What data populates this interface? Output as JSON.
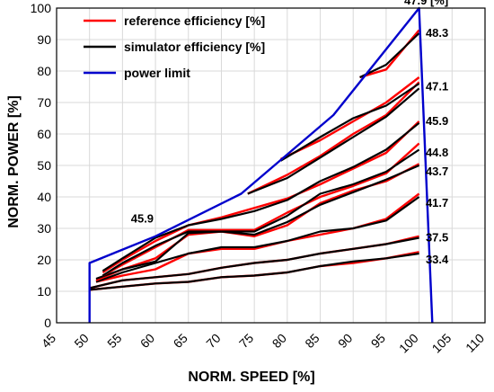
{
  "chart_data": {
    "type": "line",
    "xlabel": "NORM. SPEED [%]",
    "ylabel": "NORM. POWER [%]",
    "xlim": [
      45,
      110
    ],
    "ylim": [
      0,
      100
    ],
    "xticks": [
      45,
      50,
      55,
      60,
      65,
      70,
      75,
      80,
      85,
      90,
      95,
      100,
      105,
      110
    ],
    "yticks": [
      0,
      10,
      20,
      30,
      40,
      50,
      60,
      70,
      80,
      90,
      100
    ],
    "grid": true,
    "legend_position": "top-left",
    "legend": [
      {
        "label": "reference efficiency [%]",
        "color": "#ff0000"
      },
      {
        "label": "simulator efficiency [%]",
        "color": "#000000"
      },
      {
        "label": "power limit",
        "color": "#0000cc"
      }
    ],
    "power_limit": {
      "color": "#0000cc",
      "x": [
        50,
        50,
        60,
        73,
        87,
        100,
        102
      ],
      "y": [
        0,
        19,
        27.5,
        41,
        66,
        100,
        0
      ]
    },
    "efficiency_curves": [
      {
        "label": "33.4",
        "x": [
          50,
          55,
          60,
          65,
          70,
          75,
          80,
          85,
          90,
          95,
          100
        ],
        "reference": [
          10.5,
          11.5,
          12.5,
          13,
          14.5,
          15,
          16,
          18,
          19,
          20.5,
          22.5
        ],
        "simulator": [
          10.5,
          11.5,
          12.5,
          13,
          14.5,
          15,
          16,
          18,
          19.5,
          20.5,
          22
        ]
      },
      {
        "label": "37.5",
        "x": [
          50,
          55,
          60,
          65,
          70,
          75,
          80,
          85,
          90,
          95,
          100
        ],
        "reference": [
          11,
          13.5,
          14.5,
          15.5,
          17.5,
          19,
          20,
          22,
          23.5,
          25,
          27.5
        ],
        "simulator": [
          11,
          13.5,
          14.5,
          15.5,
          17.5,
          19,
          20,
          22,
          23.5,
          25,
          27
        ]
      },
      {
        "label": "41.7",
        "x": [
          51,
          55,
          60,
          65,
          70,
          75,
          80,
          85,
          90,
          95,
          100
        ],
        "reference": [
          13,
          15,
          17,
          22,
          23.5,
          23.5,
          26,
          28,
          30,
          33,
          41
        ],
        "simulator": [
          13,
          16,
          19,
          22,
          24,
          24,
          26,
          29,
          30,
          32.5,
          40
        ]
      },
      {
        "label": "43.7",
        "x": [
          51,
          55,
          60,
          65,
          70,
          75,
          80,
          85,
          90,
          95,
          100
        ],
        "reference": [
          13.5,
          17,
          20.5,
          28,
          29,
          27.5,
          31,
          38,
          42,
          45,
          50.5
        ],
        "simulator": [
          14,
          17,
          19.5,
          28.5,
          29,
          28,
          32,
          37.5,
          41.5,
          45.5,
          50
        ]
      },
      {
        "label": "44.8",
        "x": [
          52,
          55,
          60,
          65,
          70,
          75,
          80,
          85,
          90,
          95,
          100
        ],
        "reference": [
          15,
          18.5,
          24,
          29.5,
          29.5,
          29.5,
          35,
          40,
          43.5,
          47.5,
          57
        ],
        "simulator": [
          15,
          19,
          24.5,
          29,
          29,
          29,
          34,
          41,
          44,
          48,
          55
        ]
      },
      {
        "label": "45.9",
        "x": [
          52,
          55,
          60,
          65,
          70,
          75,
          80,
          85,
          90,
          95,
          100
        ],
        "reference": [
          16,
          20,
          26,
          31,
          33.5,
          36.5,
          39.5,
          44,
          49,
          54,
          64
        ],
        "simulator": [
          16.5,
          20.5,
          27,
          31,
          33,
          35.5,
          39,
          45,
          49.5,
          55,
          63.5
        ]
      },
      {
        "label": "47.1",
        "x": [
          74,
          80,
          85,
          90,
          95,
          100
        ],
        "reference": [
          41,
          47,
          53,
          60,
          66,
          76.5
        ],
        "simulator": [
          41,
          46,
          52.5,
          59,
          65.5,
          74.5
        ]
      },
      {
        "label": "47.9 [%]",
        "x": [
          79,
          85,
          90,
          95,
          100
        ],
        "reference": [
          52,
          58,
          64,
          70,
          78
        ],
        "simulator": [
          51.5,
          59,
          65,
          69,
          76
        ]
      },
      {
        "label": "48.3",
        "x": [
          91,
          95,
          100
        ],
        "reference": [
          78,
          80.5,
          93
        ],
        "simulator": [
          78,
          82,
          92
        ]
      }
    ],
    "annotations": [
      {
        "text": "47.9 [%]",
        "x": 100,
        "y": 100
      },
      {
        "text": "48.3",
        "x": 101,
        "y": 92
      },
      {
        "text": "47.1",
        "x": 101,
        "y": 75
      },
      {
        "text": "45.9",
        "x": 101,
        "y": 64
      },
      {
        "text": "44.8",
        "x": 101,
        "y": 54
      },
      {
        "text": "43.7",
        "x": 101,
        "y": 48
      },
      {
        "text": "41.7",
        "x": 101,
        "y": 38
      },
      {
        "text": "37.5",
        "x": 101,
        "y": 27
      },
      {
        "text": "33.4",
        "x": 101,
        "y": 20
      },
      {
        "text": "45.9",
        "x": 58,
        "y": 33
      }
    ]
  }
}
